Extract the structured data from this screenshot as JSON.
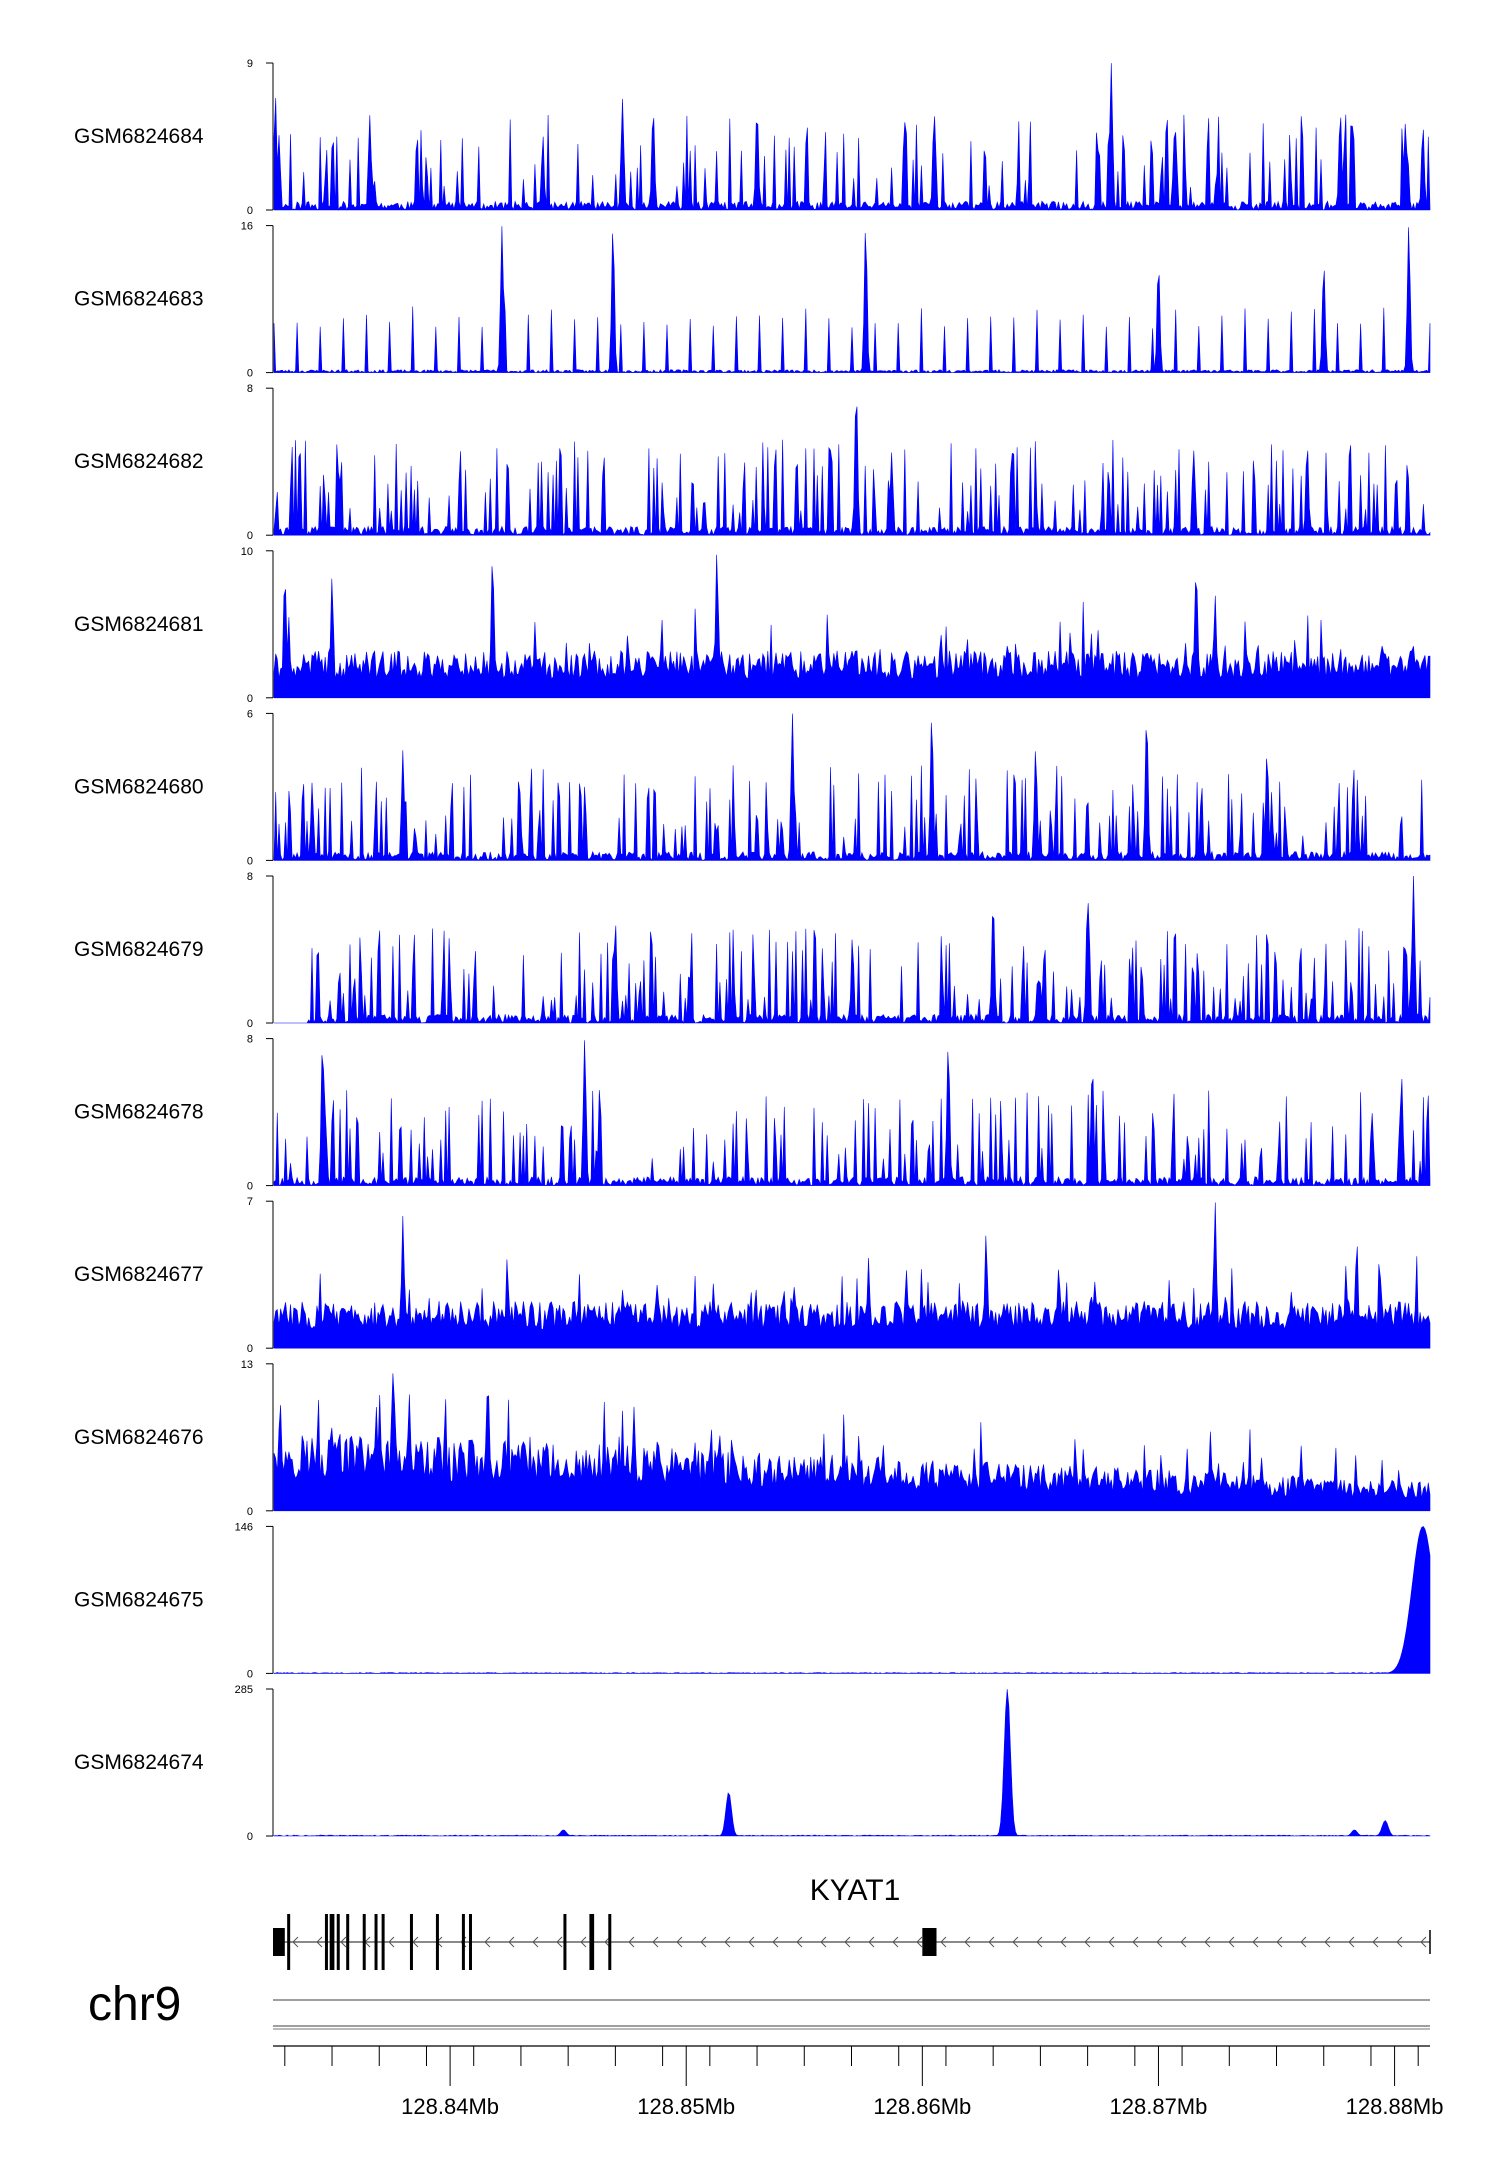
{
  "chart_data": {
    "type": "area",
    "genome": "chr9",
    "x_range_mb": [
      128.8325,
      128.8815
    ],
    "x_ticks": [
      {
        "value": 128.84,
        "label": "128.84Mb"
      },
      {
        "value": 128.85,
        "label": "128.85Mb"
      },
      {
        "value": 128.86,
        "label": "128.86Mb"
      },
      {
        "value": 128.87,
        "label": "128.87Mb"
      },
      {
        "value": 128.88,
        "label": "128.88Mb"
      }
    ],
    "fill_color": "#0000ff",
    "tracks": [
      {
        "name": "GSM6824684",
        "ymax": 9,
        "ymax_label": "9",
        "ymin_label": "0",
        "style": "spiky",
        "seed": 11,
        "peaks": [
          [
            128.8326,
            7
          ],
          [
            128.8366,
            5.8
          ],
          [
            128.8473,
            6.8
          ],
          [
            128.8486,
            6.3
          ],
          [
            128.853,
            6.2
          ],
          [
            128.8605,
            6.0
          ],
          [
            128.868,
            9.0
          ],
          [
            128.8777,
            6.1
          ],
          [
            128.8812,
            5.2
          ]
        ]
      },
      {
        "name": "GSM6824683",
        "ymax": 16,
        "ymax_label": "16",
        "ymin_label": "0",
        "style": "sparse",
        "seed": 23,
        "peaks": [
          [
            128.8422,
            16
          ],
          [
            128.8469,
            16
          ],
          [
            128.8576,
            16
          ],
          [
            128.87,
            12
          ],
          [
            128.877,
            12
          ],
          [
            128.8806,
            16
          ]
        ]
      },
      {
        "name": "GSM6824682",
        "ymax": 8,
        "ymax_label": "8",
        "ymin_label": "0",
        "style": "spiky",
        "seed": 37,
        "peaks": [
          [
            128.8572,
            8
          ],
          [
            128.8587,
            4.5
          ],
          [
            128.8763,
            5.0
          ],
          [
            128.8715,
            4.6
          ]
        ]
      },
      {
        "name": "GSM6824681",
        "ymax": 10,
        "ymax_label": "10",
        "ymin_label": "0",
        "style": "dense",
        "seed": 41,
        "peaks": [
          [
            128.833,
            8.5
          ],
          [
            128.835,
            8.2
          ],
          [
            128.8418,
            9.8
          ],
          [
            128.8513,
            10
          ],
          [
            128.8716,
            9.0
          ],
          [
            128.8724,
            7.0
          ]
        ]
      },
      {
        "name": "GSM6824680",
        "ymax": 6,
        "ymax_label": "6",
        "ymin_label": "0",
        "style": "spiky",
        "seed": 53,
        "peaks": [
          [
            128.838,
            4.5
          ],
          [
            128.8545,
            6.0
          ],
          [
            128.8604,
            6.0
          ],
          [
            128.8648,
            4.6
          ],
          [
            128.8695,
            6.0
          ],
          [
            128.8746,
            4.5
          ]
        ]
      },
      {
        "name": "GSM6824679",
        "ymax": 8,
        "ymax_label": "8",
        "ymin_label": "0",
        "style": "spiky",
        "seed": 67,
        "start": 128.834,
        "peaks": [
          [
            128.847,
            5.6
          ],
          [
            128.863,
            6.8
          ],
          [
            128.867,
            7.0
          ],
          [
            128.8808,
            8.0
          ]
        ]
      },
      {
        "name": "GSM6824678",
        "ymax": 8,
        "ymax_label": "8",
        "ymin_label": "0",
        "style": "spiky",
        "seed": 79,
        "peaks": [
          [
            128.8346,
            8.0
          ],
          [
            128.8457,
            8.0
          ],
          [
            128.8611,
            7.8
          ],
          [
            128.8672,
            6.7
          ],
          [
            128.8803,
            5.9
          ]
        ]
      },
      {
        "name": "GSM6824677",
        "ymax": 7,
        "ymax_label": "7",
        "ymin_label": "0",
        "style": "dense",
        "seed": 83,
        "peaks": [
          [
            128.838,
            6.3
          ],
          [
            128.8627,
            5.5
          ],
          [
            128.8724,
            7.0
          ],
          [
            128.8784,
            5.2
          ]
        ]
      },
      {
        "name": "GSM6824676",
        "ymax": 13,
        "ymax_label": "13",
        "ymin_label": "0",
        "style": "dense",
        "seed": 97,
        "decay": true,
        "peaks": [
          [
            128.8328,
            10
          ],
          [
            128.8376,
            13
          ],
          [
            128.8416,
            12
          ],
          [
            128.8488,
            7.0
          ],
          [
            128.8622,
            5.5
          ],
          [
            128.8722,
            7.0
          ]
        ]
      },
      {
        "name": "GSM6824675",
        "ymax": 146,
        "ymax_label": "146",
        "ymin_label": "0",
        "style": "peaks",
        "seed": 101,
        "peaks": [
          [
            128.8812,
            146,
            0.00045
          ]
        ]
      },
      {
        "name": "GSM6824674",
        "ymax": 285,
        "ymax_label": "285",
        "ymin_label": "0",
        "style": "peaks",
        "seed": 113,
        "peaks": [
          [
            128.8448,
            12,
            0.00012
          ],
          [
            128.8518,
            85,
            0.00012
          ],
          [
            128.8636,
            285,
            0.00013
          ],
          [
            128.8783,
            12,
            0.00012
          ],
          [
            128.8796,
            30,
            0.00013
          ]
        ]
      }
    ],
    "gene": {
      "name": "KYAT1",
      "strand": "-",
      "start": 128.8325,
      "end": 128.8815,
      "exons": [
        [
          128.8325,
          128.833
        ],
        [
          128.8331,
          128.8332
        ],
        [
          128.8347,
          128.8348
        ],
        [
          128.8349,
          128.8351
        ],
        [
          128.8352,
          128.8353
        ],
        [
          128.8356,
          128.8357
        ],
        [
          128.8363,
          128.8364
        ],
        [
          128.8368,
          128.8369
        ],
        [
          128.8371,
          128.8372
        ],
        [
          128.8383,
          128.8384
        ],
        [
          128.8394,
          128.8395
        ],
        [
          128.8405,
          128.8406
        ],
        [
          128.8408,
          128.8409
        ],
        [
          128.8448,
          128.8449
        ],
        [
          128.8459,
          128.8461
        ],
        [
          128.8467,
          128.8468
        ],
        [
          128.86,
          128.8606
        ]
      ]
    }
  }
}
